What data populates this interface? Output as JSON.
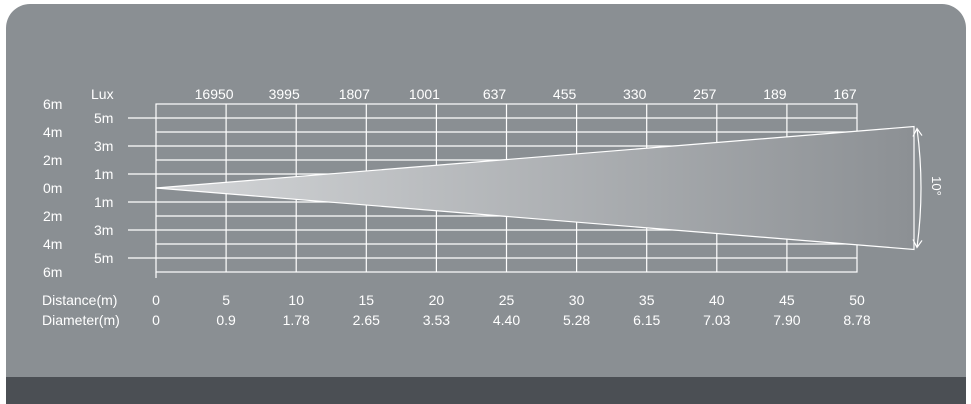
{
  "labels": {
    "lux": "Lux",
    "distance": "Distance(m)",
    "diameter": "Diameter(m)",
    "angle": "10°"
  },
  "lux_values": [
    "16950",
    "3995",
    "1807",
    "1001",
    "637",
    "455",
    "330",
    "257",
    "189",
    "167"
  ],
  "distances": [
    "0",
    "5",
    "10",
    "15",
    "20",
    "25",
    "30",
    "35",
    "40",
    "45",
    "50"
  ],
  "diameters": [
    "0",
    "0.9",
    "1.78",
    "2.65",
    "3.53",
    "4.40",
    "5.28",
    "6.15",
    "7.03",
    "7.90",
    "8.78"
  ],
  "outer_scale": [
    "6m",
    "4m",
    "2m",
    "0m",
    "2m",
    "4m",
    "6m"
  ],
  "inner_scale": [
    "5m",
    "3m",
    "1m",
    "1m",
    "3m",
    "5m"
  ],
  "beam": {
    "angle_deg": 10,
    "max_distance_m": 50,
    "max_diameter_m": 8.78,
    "color_near": "#d4d6d8",
    "color_far": "#8c9094"
  },
  "colors": {
    "background": "#8a8f93",
    "footer": "#4b4f54",
    "lines": "#ffffff"
  }
}
